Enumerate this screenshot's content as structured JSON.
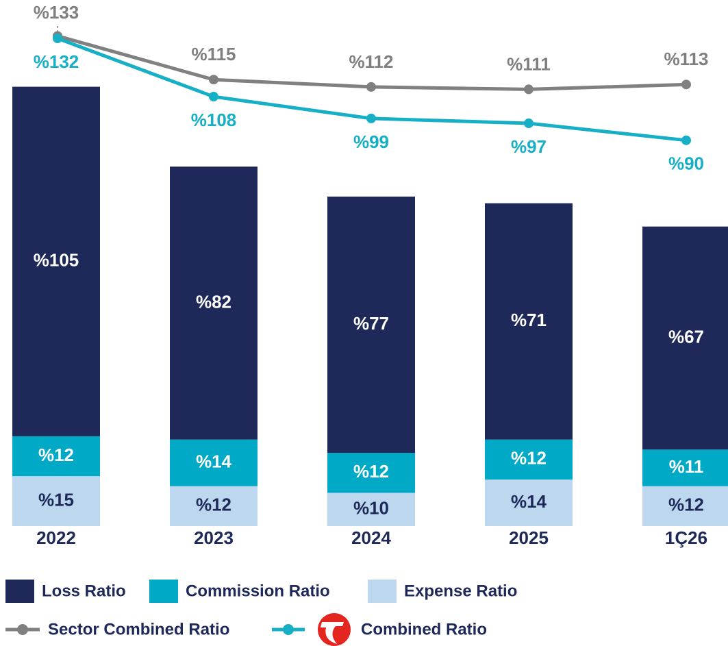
{
  "chart_data": {
    "type": "bar",
    "stacked": true,
    "categories": [
      "2022",
      "2023",
      "2024",
      "2025",
      "1Ç26"
    ],
    "series": [
      {
        "name": "Expense Ratio",
        "color": "#bdd7ee",
        "values": [
          15,
          12,
          10,
          14,
          12
        ],
        "value_labels": [
          "%15",
          "%12",
          "%10",
          "%14",
          "%12"
        ]
      },
      {
        "name": "Commission Ratio",
        "color": "#00a9c6",
        "values": [
          12,
          14,
          12,
          12,
          11
        ],
        "value_labels": [
          "%12",
          "%14",
          "%12",
          "%12",
          "%11"
        ]
      },
      {
        "name": "Loss Ratio",
        "color": "#1e2859",
        "values": [
          105,
          82,
          77,
          71,
          67
        ],
        "value_labels": [
          "%105",
          "%82",
          "%77",
          "%71",
          "%67"
        ]
      },
      {
        "name": "Sector Combined Ratio",
        "type": "line",
        "axis": "y2",
        "color": "#808080",
        "values": [
          133,
          115,
          112,
          111,
          113
        ],
        "value_labels": [
          "%133",
          "%115",
          "%112",
          "%111",
          "%113"
        ]
      },
      {
        "name": "Combined Ratio",
        "type": "line",
        "axis": "y2",
        "color": "#17afc6",
        "values": [
          132,
          108,
          99,
          97,
          90
        ],
        "value_labels": [
          "%132",
          "%108",
          "%99",
          "%97",
          "%90"
        ]
      }
    ],
    "ylim": [
      0,
      156
    ],
    "y2lim": [
      -69,
      145
    ]
  }
}
